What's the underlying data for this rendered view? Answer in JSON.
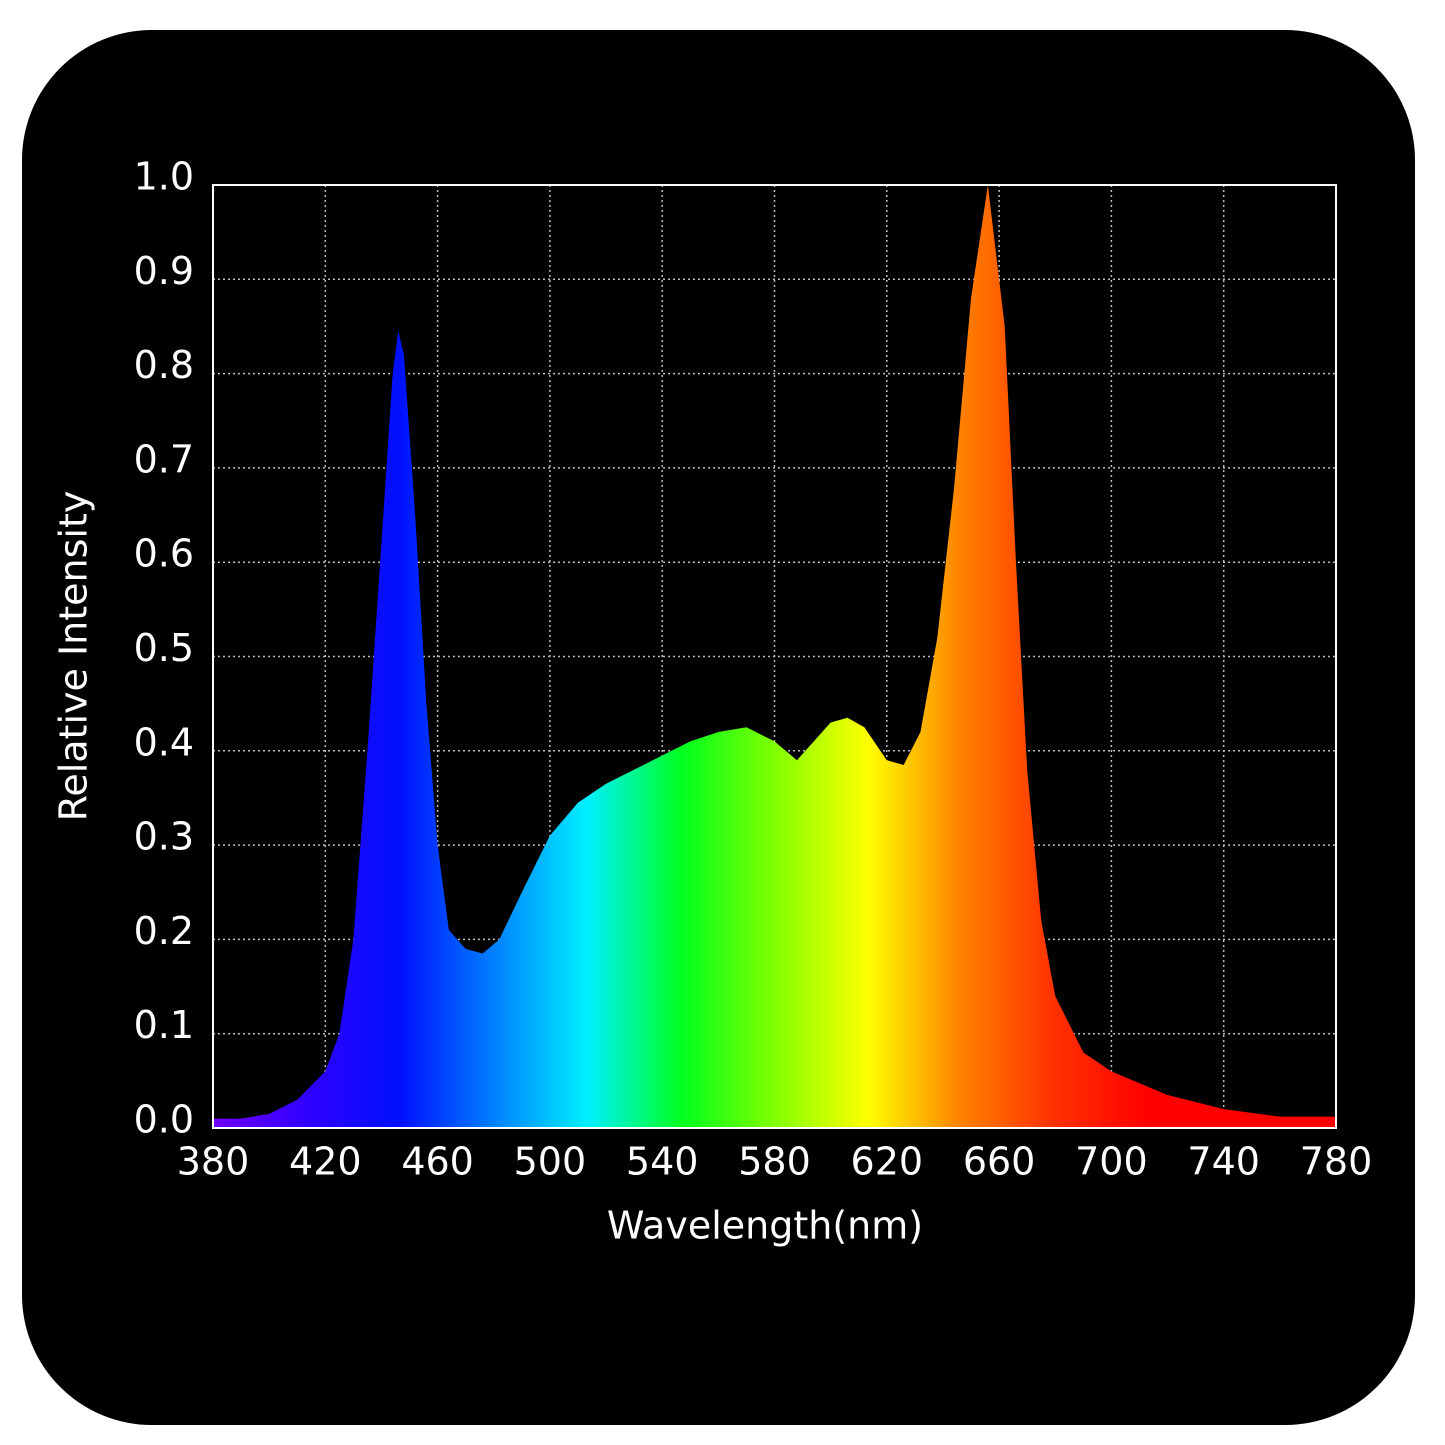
{
  "chart_data": {
    "type": "area",
    "x_label": "Wavelength(nm)",
    "y_label": "Relative Intensity",
    "x": [
      380,
      390,
      400,
      410,
      420,
      425,
      430,
      435,
      440,
      444,
      446,
      448,
      452,
      456,
      460,
      464,
      470,
      476,
      482,
      490,
      500,
      510,
      520,
      530,
      540,
      550,
      560,
      570,
      580,
      588,
      594,
      600,
      606,
      612,
      620,
      626,
      632,
      638,
      644,
      650,
      656,
      662,
      666,
      670,
      675,
      680,
      690,
      700,
      720,
      740,
      760,
      780
    ],
    "values": [
      0.01,
      0.01,
      0.015,
      0.03,
      0.06,
      0.1,
      0.2,
      0.4,
      0.62,
      0.8,
      0.845,
      0.82,
      0.65,
      0.45,
      0.3,
      0.21,
      0.19,
      0.185,
      0.2,
      0.25,
      0.31,
      0.345,
      0.365,
      0.38,
      0.395,
      0.41,
      0.42,
      0.425,
      0.41,
      0.39,
      0.41,
      0.43,
      0.435,
      0.425,
      0.39,
      0.385,
      0.42,
      0.52,
      0.68,
      0.88,
      1.0,
      0.85,
      0.6,
      0.38,
      0.22,
      0.14,
      0.08,
      0.06,
      0.035,
      0.02,
      0.012,
      0.012
    ],
    "colors": [
      "#7000ff",
      "#3000ff",
      "#0010ff",
      "#0080ff",
      "#00f0ff",
      "#00ff20",
      "#80ff00",
      "#ffff00",
      "#ff8000",
      "#ff3000",
      "#ff0000",
      "#ff0000",
      "#ff0000"
    ],
    "xlim": [
      380,
      780
    ],
    "ylim": [
      0,
      1
    ],
    "xticks": [
      380,
      420,
      460,
      500,
      540,
      580,
      620,
      660,
      700,
      740,
      780
    ],
    "yticks": [
      {
        "value": 0,
        "label": "0.0"
      },
      0.1,
      0.2,
      0.3,
      0.4,
      0.5,
      0.6,
      0.7,
      0.8,
      0.9,
      {
        "value": 1,
        "label": "1.0"
      }
    ],
    "grid": true
  }
}
